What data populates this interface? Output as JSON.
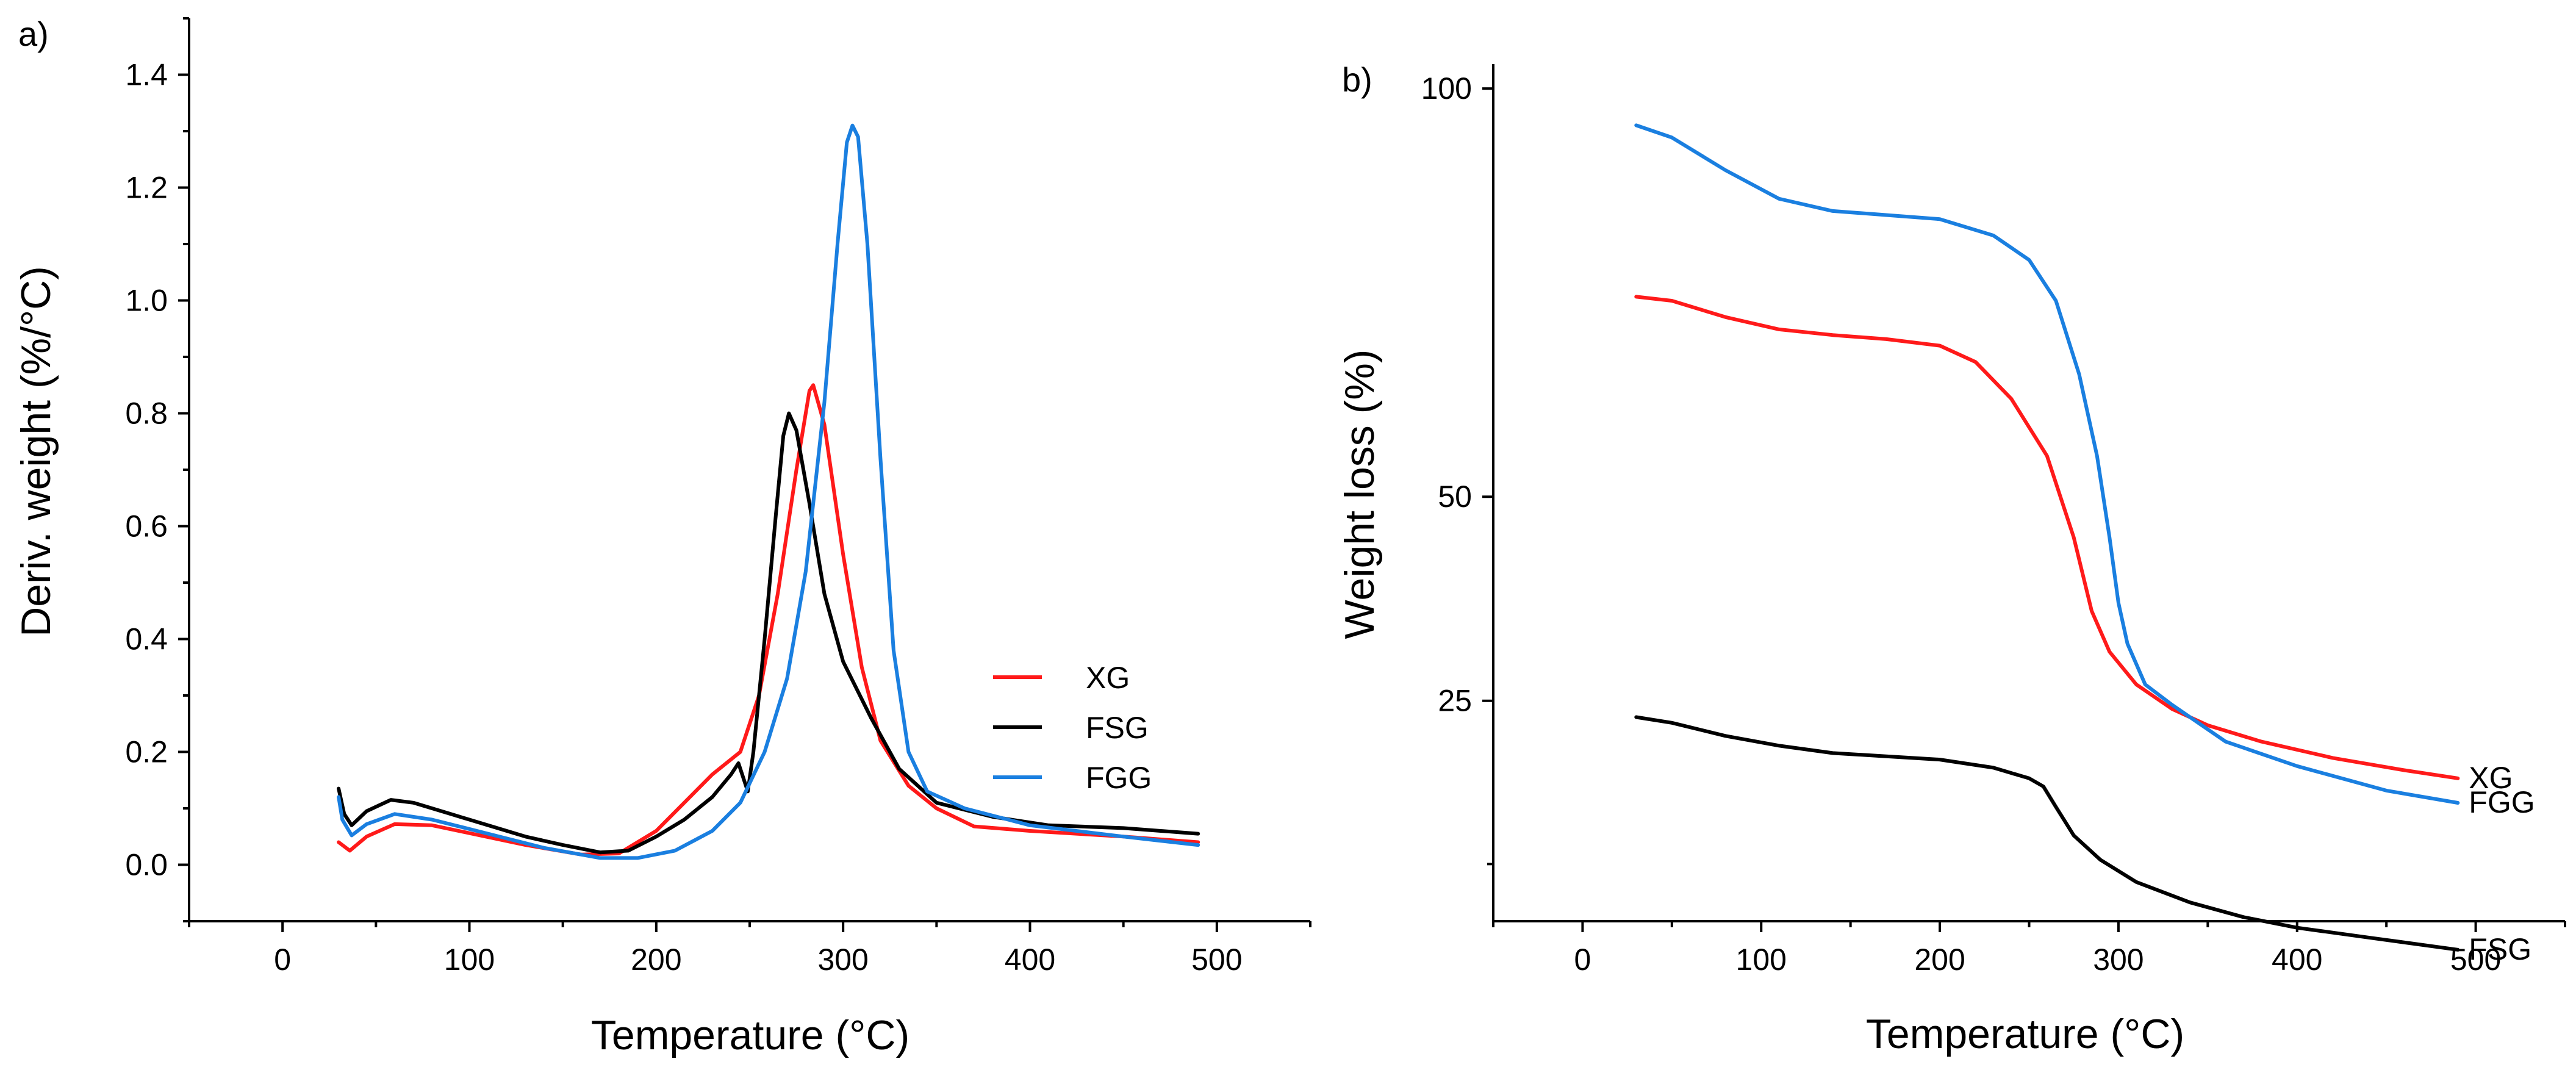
{
  "chart_data": [
    {
      "type": "line",
      "panel_label": "a)",
      "xlabel": "Temperature (°C)",
      "ylabel": "Deriv. weight (%/°C)",
      "xlim": [
        -50,
        550
      ],
      "ylim": [
        -0.1,
        1.5
      ],
      "xticks": [
        0,
        100,
        200,
        300,
        400,
        500
      ],
      "xtick_labels": [
        "0",
        "100",
        "200",
        "300",
        "400",
        "500"
      ],
      "yticks": [
        0.0,
        0.2,
        0.4,
        0.6,
        0.8,
        1.0,
        1.2,
        1.4
      ],
      "ytick_labels": [
        "0.0",
        "0.2",
        "0.4",
        "0.6",
        "0.8",
        "1.0",
        "1.2",
        "1.4"
      ],
      "grid": false,
      "legend": "right",
      "series": [
        {
          "name": "XG",
          "color": "#ff1a1a",
          "points": [
            [
              30,
              0.04
            ],
            [
              36,
              0.025
            ],
            [
              45,
              0.05
            ],
            [
              60,
              0.072
            ],
            [
              80,
              0.07
            ],
            [
              100,
              0.056
            ],
            [
              130,
              0.035
            ],
            [
              160,
              0.018
            ],
            [
              180,
              0.02
            ],
            [
              200,
              0.06
            ],
            [
              215,
              0.11
            ],
            [
              230,
              0.16
            ],
            [
              245,
              0.2
            ],
            [
              255,
              0.3
            ],
            [
              265,
              0.48
            ],
            [
              275,
              0.7
            ],
            [
              282,
              0.84
            ],
            [
              284,
              0.85
            ],
            [
              290,
              0.78
            ],
            [
              300,
              0.55
            ],
            [
              310,
              0.35
            ],
            [
              320,
              0.22
            ],
            [
              335,
              0.14
            ],
            [
              350,
              0.1
            ],
            [
              370,
              0.068
            ],
            [
              400,
              0.06
            ],
            [
              450,
              0.05
            ],
            [
              490,
              0.04
            ]
          ]
        },
        {
          "name": "FSG",
          "color": "#000000",
          "points": [
            [
              30,
              0.135
            ],
            [
              33,
              0.09
            ],
            [
              37,
              0.07
            ],
            [
              45,
              0.095
            ],
            [
              58,
              0.115
            ],
            [
              70,
              0.11
            ],
            [
              90,
              0.09
            ],
            [
              110,
              0.07
            ],
            [
              130,
              0.05
            ],
            [
              150,
              0.035
            ],
            [
              170,
              0.022
            ],
            [
              185,
              0.025
            ],
            [
              200,
              0.05
            ],
            [
              215,
              0.08
            ],
            [
              230,
              0.12
            ],
            [
              240,
              0.16
            ],
            [
              244,
              0.18
            ],
            [
              247,
              0.15
            ],
            [
              249,
              0.13
            ],
            [
              252,
              0.2
            ],
            [
              258,
              0.4
            ],
            [
              264,
              0.62
            ],
            [
              268,
              0.76
            ],
            [
              271,
              0.8
            ],
            [
              275,
              0.77
            ],
            [
              282,
              0.64
            ],
            [
              290,
              0.48
            ],
            [
              300,
              0.36
            ],
            [
              315,
              0.26
            ],
            [
              330,
              0.17
            ],
            [
              350,
              0.11
            ],
            [
              380,
              0.085
            ],
            [
              410,
              0.07
            ],
            [
              450,
              0.065
            ],
            [
              490,
              0.055
            ]
          ]
        },
        {
          "name": "FGG",
          "color": "#1a7fe0",
          "points": [
            [
              30,
              0.12
            ],
            [
              32,
              0.08
            ],
            [
              37,
              0.052
            ],
            [
              45,
              0.072
            ],
            [
              60,
              0.09
            ],
            [
              80,
              0.08
            ],
            [
              110,
              0.055
            ],
            [
              140,
              0.03
            ],
            [
              170,
              0.012
            ],
            [
              190,
              0.012
            ],
            [
              210,
              0.025
            ],
            [
              230,
              0.06
            ],
            [
              245,
              0.11
            ],
            [
              258,
              0.2
            ],
            [
              270,
              0.33
            ],
            [
              280,
              0.52
            ],
            [
              290,
              0.82
            ],
            [
              297,
              1.1
            ],
            [
              302,
              1.28
            ],
            [
              305,
              1.31
            ],
            [
              308,
              1.29
            ],
            [
              313,
              1.1
            ],
            [
              320,
              0.72
            ],
            [
              327,
              0.38
            ],
            [
              335,
              0.2
            ],
            [
              345,
              0.13
            ],
            [
              365,
              0.1
            ],
            [
              400,
              0.07
            ],
            [
              450,
              0.05
            ],
            [
              490,
              0.035
            ]
          ]
        }
      ]
    },
    {
      "type": "line",
      "panel_label": "b)",
      "xlabel": "Temperature (°C)",
      "ylabel": "Weight loss (%)",
      "xlim": [
        -50,
        550
      ],
      "ylim": [
        -2,
        103
      ],
      "xticks": [
        0,
        100,
        200,
        300,
        400,
        500
      ],
      "xtick_labels": [
        "0",
        "100",
        "200",
        "300",
        "400",
        "500"
      ],
      "yticks": [
        25,
        50,
        100
      ],
      "ytick_labels": [
        "25",
        "50",
        "100"
      ],
      "y_minor_ticks": [
        5
      ],
      "grid": false,
      "legend": "end-of-line labels",
      "series": [
        {
          "name": "XG",
          "color": "#ff1a1a",
          "points": [
            [
              30,
              74.5
            ],
            [
              50,
              74
            ],
            [
              80,
              72
            ],
            [
              110,
              70.5
            ],
            [
              140,
              69.8
            ],
            [
              170,
              69.3
            ],
            [
              200,
              68.5
            ],
            [
              220,
              66.5
            ],
            [
              240,
              62
            ],
            [
              260,
              55
            ],
            [
              275,
              45
            ],
            [
              285,
              36
            ],
            [
              295,
              31
            ],
            [
              310,
              27
            ],
            [
              330,
              24
            ],
            [
              350,
              22
            ],
            [
              380,
              20
            ],
            [
              420,
              18
            ],
            [
              460,
              16.5
            ],
            [
              490,
              15.5
            ]
          ]
        },
        {
          "name": "FGG",
          "color": "#1a7fe0",
          "points": [
            [
              30,
              95.5
            ],
            [
              50,
              94
            ],
            [
              80,
              90
            ],
            [
              110,
              86.5
            ],
            [
              140,
              85
            ],
            [
              170,
              84.5
            ],
            [
              200,
              84
            ],
            [
              230,
              82
            ],
            [
              250,
              79
            ],
            [
              265,
              74
            ],
            [
              278,
              65
            ],
            [
              288,
              55
            ],
            [
              295,
              45
            ],
            [
              300,
              37
            ],
            [
              305,
              32
            ],
            [
              315,
              27
            ],
            [
              330,
              24.5
            ],
            [
              360,
              20
            ],
            [
              400,
              17
            ],
            [
              450,
              14
            ],
            [
              490,
              12.5
            ]
          ]
        },
        {
          "name": "FSG",
          "color": "#000000",
          "points": [
            [
              30,
              23
            ],
            [
              50,
              22.3
            ],
            [
              80,
              20.7
            ],
            [
              110,
              19.5
            ],
            [
              140,
              18.6
            ],
            [
              170,
              18.2
            ],
            [
              200,
              17.8
            ],
            [
              230,
              16.8
            ],
            [
              250,
              15.5
            ],
            [
              258,
              14.5
            ],
            [
              265,
              12
            ],
            [
              275,
              8.5
            ],
            [
              290,
              5.5
            ],
            [
              310,
              2.8
            ],
            [
              340,
              0.3
            ],
            [
              370,
              -1.5
            ],
            [
              400,
              -2.8
            ],
            [
              440,
              -4
            ],
            [
              490,
              -5.5
            ]
          ]
        }
      ]
    }
  ]
}
